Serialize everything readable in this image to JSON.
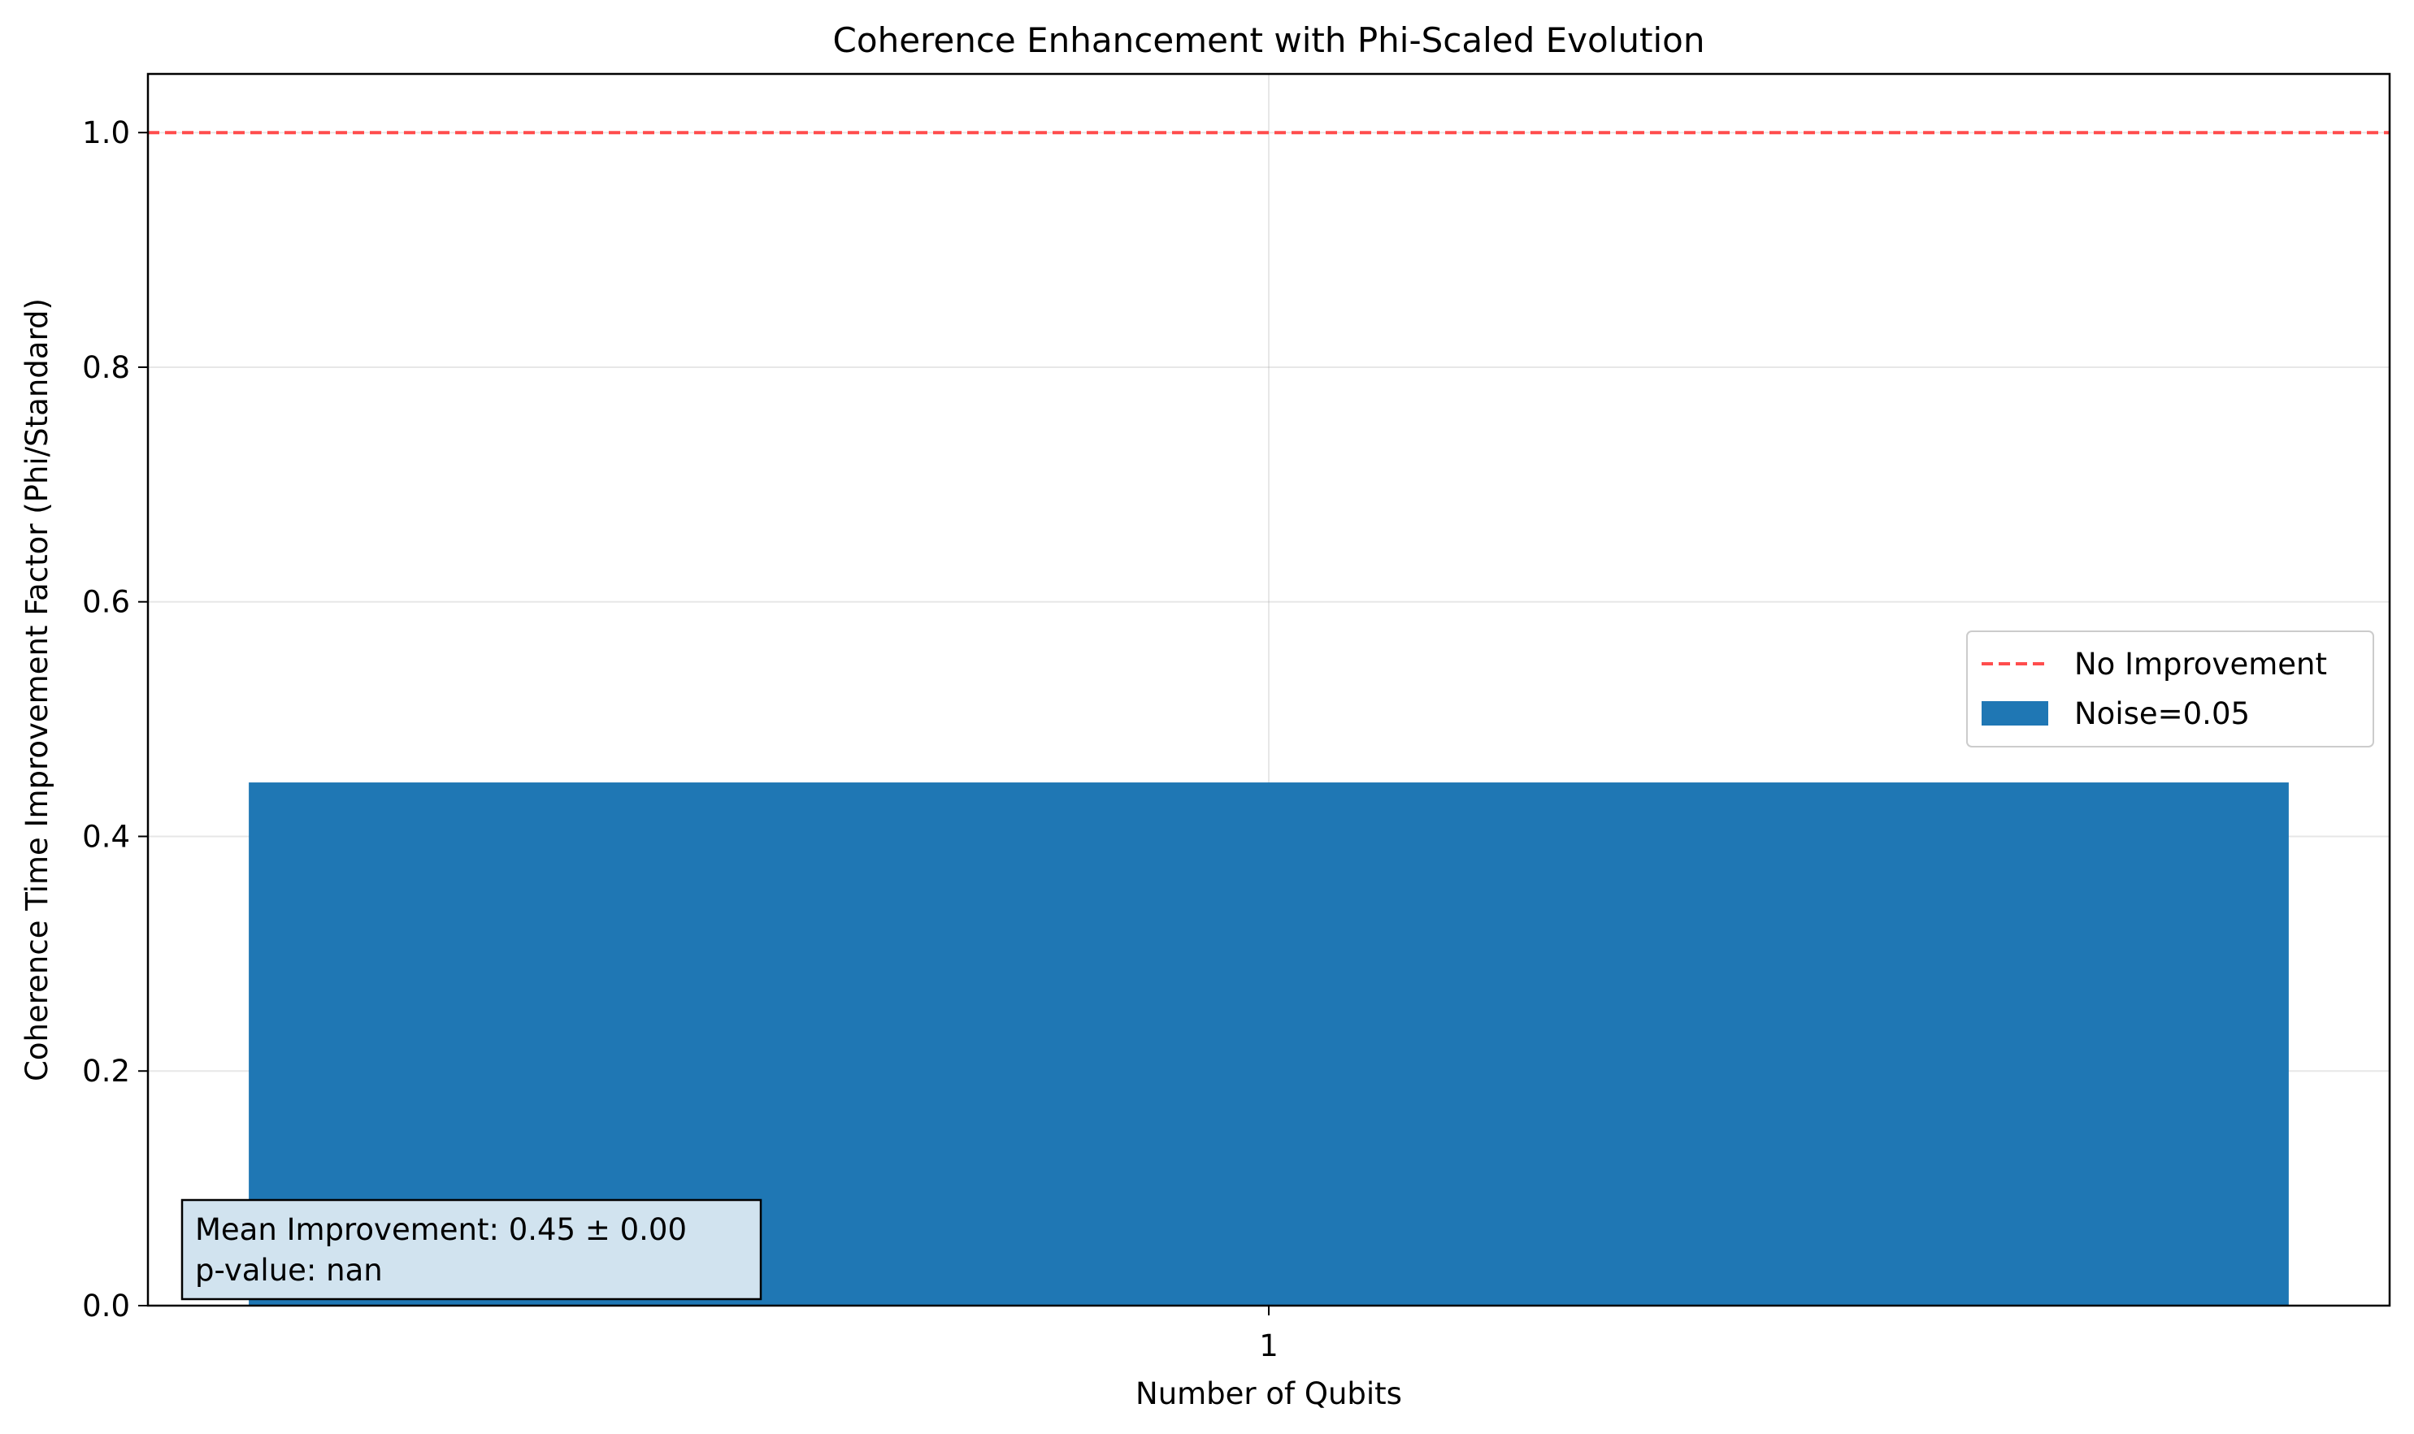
{
  "chart_data": {
    "type": "bar",
    "title": "Coherence Enhancement with Phi-Scaled Evolution",
    "xlabel": "Number of Qubits",
    "ylabel": "Coherence Time Improvement Factor (Phi/Standard)",
    "categories": [
      "1"
    ],
    "series": [
      {
        "name": "Noise=0.05",
        "values": [
          0.446
        ],
        "color": "#1f77b4"
      }
    ],
    "reference_line": {
      "name": "No Improvement",
      "value": 1.0,
      "color": "#ff4d4d",
      "style": "dashed"
    },
    "ylim": [
      0,
      1.05
    ],
    "yticks": [
      0.0,
      0.2,
      0.4,
      0.6,
      0.8,
      1.0
    ],
    "ytick_labels": [
      "0.0",
      "0.2",
      "0.4",
      "0.6",
      "0.8",
      "1.0"
    ],
    "grid": true,
    "legend_position": "center-right",
    "annotation": {
      "lines": [
        "Mean Improvement: 0.45 ± 0.00",
        "p-value: nan"
      ],
      "position": "bottom-left",
      "background": "#d1e3ef"
    }
  }
}
